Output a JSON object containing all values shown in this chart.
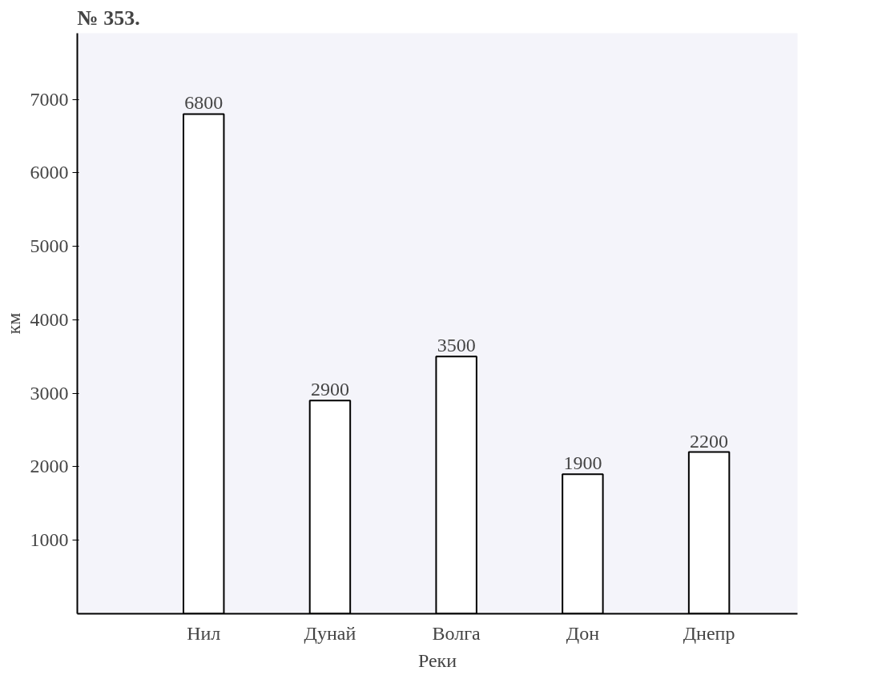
{
  "chart_data": {
    "type": "bar",
    "title": "№ 353.",
    "xlabel": "Реки",
    "ylabel": "км",
    "categories": [
      "Нил",
      "Дунай",
      "Волга",
      "Дон",
      "Днепр"
    ],
    "values": [
      6800,
      2900,
      3500,
      1900,
      2200
    ],
    "color": "#ffffff",
    "ylim": [
      0,
      7900
    ],
    "yticks": [
      1000,
      2000,
      3000,
      4000,
      5000,
      6000,
      7000
    ],
    "data_labels": true,
    "grid": false
  }
}
